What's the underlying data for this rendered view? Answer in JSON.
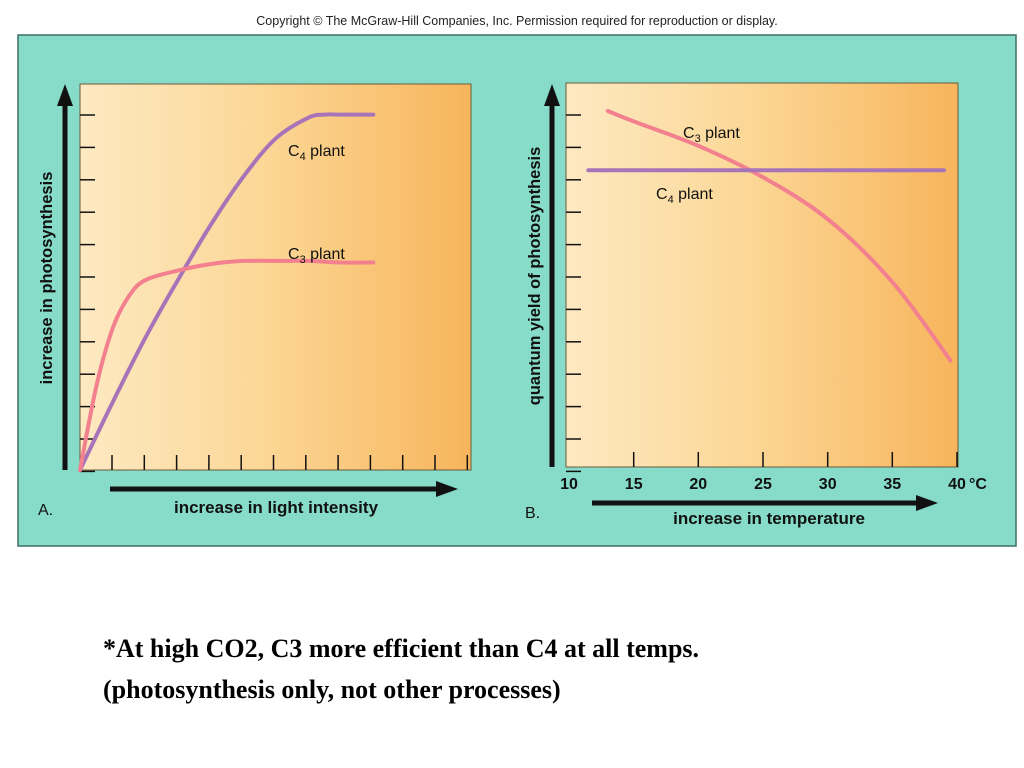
{
  "copyright": "Copyright © The McGraw-Hill Companies, Inc. Permission required for reproduction or display.",
  "colors": {
    "background_panel": "#86dcc8",
    "plot_fill_left": "#fde9c2",
    "plot_fill_right": "#f7b55c",
    "c4_line": "#a874b8",
    "c3_line": "#f2808e",
    "axis": "#111111"
  },
  "chart_data": [
    {
      "type": "line",
      "panel_label": "A.",
      "title": "",
      "xlabel": "increase in light intensity",
      "ylabel": "increase in photosynthesis",
      "x_ticks_labeled": false,
      "y_ticks_labeled": false,
      "xlim": [
        0,
        12
      ],
      "ylim": [
        0,
        12
      ],
      "grid": false,
      "series": [
        {
          "name": "C4 plant",
          "label_sub": "4",
          "color": "#a874b8",
          "x": [
            0,
            1,
            2,
            3,
            4,
            5,
            6,
            7,
            7.5,
            8,
            9
          ],
          "y": [
            0,
            2.1,
            4.1,
            5.9,
            7.6,
            9.1,
            10.3,
            10.95,
            11.05,
            11.05,
            11.05
          ]
        },
        {
          "name": "C3 plant",
          "label_sub": "3",
          "color": "#f2808e",
          "x": [
            0,
            0.5,
            1,
            1.5,
            2,
            3,
            4,
            5,
            6,
            7,
            8,
            9
          ],
          "y": [
            0,
            2.6,
            4.4,
            5.4,
            5.9,
            6.2,
            6.4,
            6.5,
            6.5,
            6.5,
            6.45,
            6.45
          ]
        }
      ]
    },
    {
      "type": "line",
      "panel_label": "B.",
      "title": "",
      "xlabel": "increase in temperature",
      "ylabel": "quantum yield of photosynthesis",
      "xticks": [
        "10",
        "15",
        "20",
        "25",
        "30",
        "35",
        "40"
      ],
      "x_unit": "°C",
      "y_ticks_labeled": false,
      "xlim": [
        10,
        40
      ],
      "ylim": [
        0,
        11
      ],
      "grid": false,
      "series": [
        {
          "name": "C3 plant",
          "label_sub": "3",
          "color": "#f2808e",
          "x": [
            13,
            15,
            20,
            25,
            30,
            35,
            39.5
          ],
          "y": [
            10.2,
            9.9,
            9.2,
            8.3,
            7.1,
            5.3,
            3.05
          ]
        },
        {
          "name": "C4 plant",
          "label_sub": "4",
          "color": "#a874b8",
          "x": [
            11.5,
            39
          ],
          "y": [
            8.5,
            8.5
          ]
        }
      ]
    }
  ],
  "caption": {
    "line1": "*At high CO2, C3 more efficient than C4 at all temps.",
    "line2": "(photosynthesis only, not other processes)"
  }
}
